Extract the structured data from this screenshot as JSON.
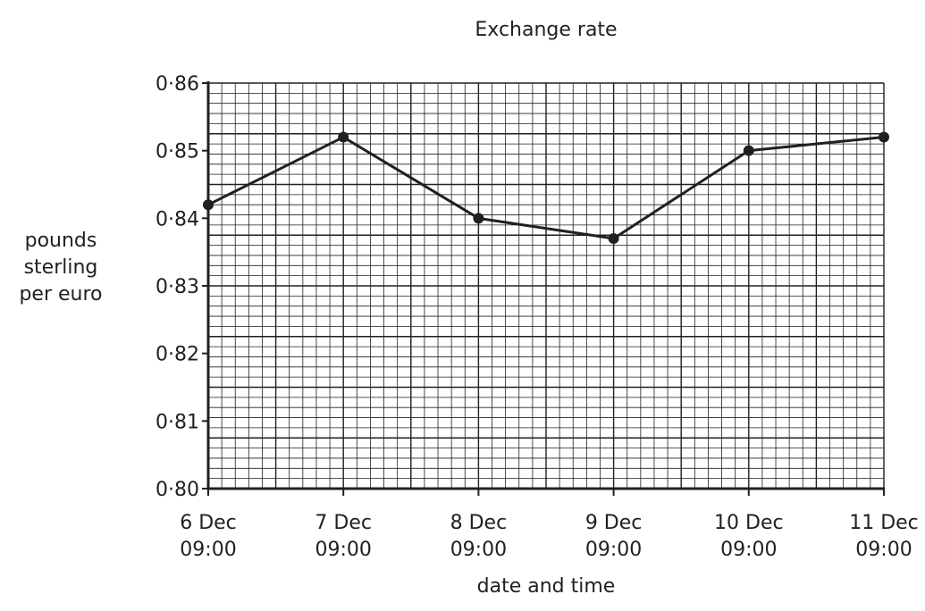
{
  "chart_data": {
    "type": "line",
    "title": "Exchange rate",
    "xlabel": "date and time",
    "ylabel": [
      "pounds",
      "sterling",
      "per euro"
    ],
    "x": [
      [
        "6 Dec",
        "09:00"
      ],
      [
        "7 Dec",
        "09:00"
      ],
      [
        "8 Dec",
        "09:00"
      ],
      [
        "9 Dec",
        "09:00"
      ],
      [
        "10 Dec",
        "09:00"
      ],
      [
        "11 Dec",
        "09:00"
      ]
    ],
    "series": [
      {
        "values": [
          0.842,
          0.852,
          0.84,
          0.837,
          0.85,
          0.852
        ]
      }
    ],
    "ylim": [
      0.8,
      0.86
    ],
    "yticks": [
      "0·80",
      "0·81",
      "0·82",
      "0·83",
      "0·84",
      "0·85",
      "0·86"
    ],
    "grid": true,
    "line_color": "#231f20"
  }
}
